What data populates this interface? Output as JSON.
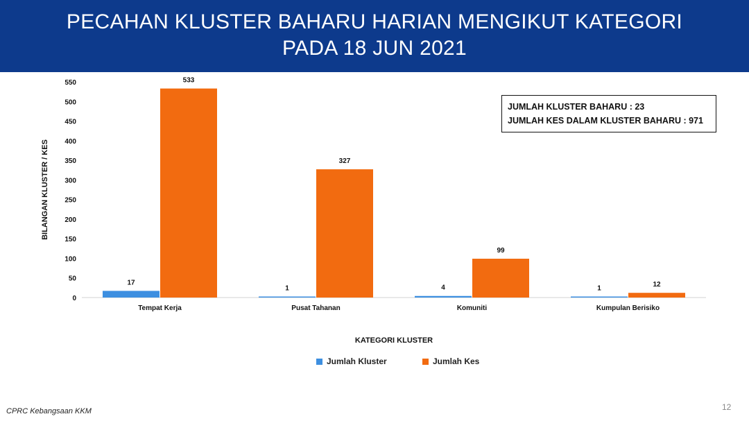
{
  "header": {
    "title_line1": "PECAHAN KLUSTER BAHARU HARIAN MENGIKUT KATEGORI",
    "title_line2": "PADA 18 JUN 2021"
  },
  "summary": {
    "line1": "JUMLAH KLUSTER BAHARU : 23",
    "line2": "JUMLAH KES DALAM KLUSTER BAHARU : 971"
  },
  "chart_data": {
    "type": "bar",
    "title": "PECAHAN KLUSTER BAHARU HARIAN MENGIKUT KATEGORI PADA 18 JUN 2021",
    "xlabel": "KATEGORI KLUSTER",
    "ylabel": "BILANGAN KLUSTER / KES",
    "categories": [
      "Tempat Kerja",
      "Pusat Tahanan",
      "Komuniti",
      "Kumpulan Berisiko"
    ],
    "series": [
      {
        "name": "Jumlah Kluster",
        "values": [
          17,
          1,
          4,
          1
        ],
        "color": "#3d8fe0"
      },
      {
        "name": "Jumlah Kes",
        "values": [
          533,
          327,
          99,
          12
        ],
        "color": "#f26b10"
      }
    ],
    "ylim": [
      0,
      550
    ],
    "yticks": [
      0,
      50,
      100,
      150,
      200,
      250,
      300,
      350,
      400,
      450,
      500,
      550
    ],
    "grid": false,
    "legend_position": "bottom"
  },
  "footer": {
    "source": "CPRC Kebangsaan KKM",
    "page_number": "12"
  }
}
